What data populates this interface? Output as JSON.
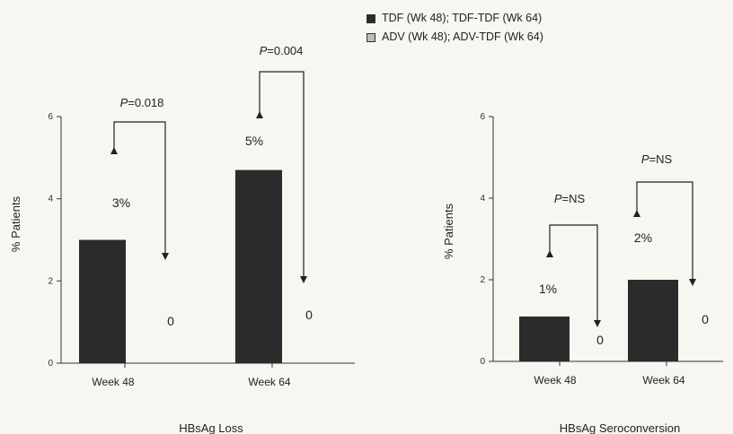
{
  "legend": {
    "items": [
      {
        "label": "TDF (Wk 48); TDF-TDF (Wk 64)",
        "color": "#2b2b2b"
      },
      {
        "label": "ADV (Wk 48); ADV-TDF (Wk 64)",
        "color": "#bdbdbd"
      }
    ]
  },
  "chart_data": [
    {
      "type": "bar",
      "title": "HBsAg  Loss",
      "xlabel": "",
      "ylabel": "% Patients",
      "ylim": [
        0,
        6
      ],
      "yticks": [
        "0",
        "2",
        "4",
        "6"
      ],
      "categories": [
        "Week 48",
        "Week 64"
      ],
      "series": [
        {
          "name": "TDF (Wk 48); TDF-TDF (Wk 64)",
          "values": [
            3,
            4.7
          ],
          "color": "#2b2b2b"
        },
        {
          "name": "ADV (Wk 48); ADV-TDF (Wk 64)",
          "values": [
            0,
            0
          ],
          "color": "#bdbdbd"
        }
      ],
      "data_labels": [
        [
          "3%",
          "5%"
        ],
        [
          "0",
          "0"
        ]
      ],
      "p_values": [
        "P=0.018",
        "P=0.004"
      ]
    },
    {
      "type": "bar",
      "title": "HBsAg  Seroconversion",
      "xlabel": "",
      "ylabel": "% Patients",
      "ylim": [
        0,
        6
      ],
      "yticks": [
        "0",
        "2",
        "4",
        "6"
      ],
      "categories": [
        "Week 48",
        "Week 64"
      ],
      "series": [
        {
          "name": "TDF (Wk 48); TDF-TDF (Wk 64)",
          "values": [
            1.1,
            2.0
          ],
          "color": "#2b2b2b"
        },
        {
          "name": "ADV (Wk 48); ADV-TDF (Wk 64)",
          "values": [
            0,
            0
          ],
          "color": "#bdbdbd"
        }
      ],
      "data_labels": [
        [
          "1%",
          "2%"
        ],
        [
          "0",
          "0"
        ]
      ],
      "p_values": [
        "P=NS",
        "P=NS"
      ]
    }
  ]
}
